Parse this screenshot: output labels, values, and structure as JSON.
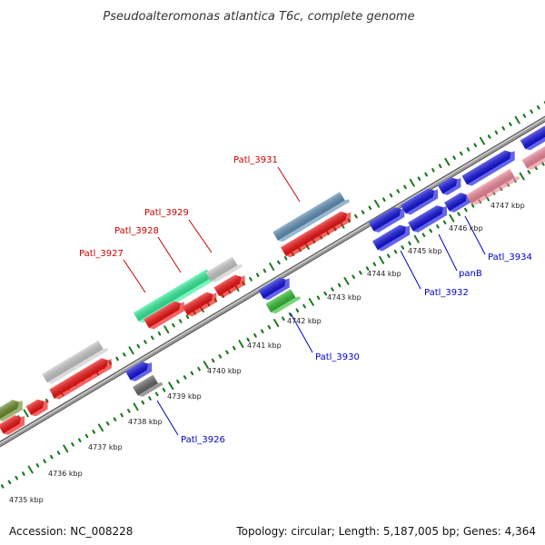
{
  "title": "Pseudoalteromonas atlantica T6c, complete genome",
  "footer": {
    "accession": "Accession: NC_008228",
    "summary": "Topology: circular; Length: 5,187,005 bp; Genes: 4,364"
  },
  "colors": {
    "backbone": "#7f7f7f",
    "ticks": "#1f7a1f",
    "forward_label": "#cc0000",
    "reverse_label": "#0000cc",
    "red": "#ee1111",
    "blue": "#1111dd",
    "steel_blue": "#5f8fb5",
    "green": "#33bb33",
    "aquamarine": "#33ee99",
    "gray": "#c8c8c8",
    "dark_gray": "#666666",
    "pink": "#ee8899",
    "olive": "#6a8c2a"
  },
  "tick_labels": [
    "4735 kbp",
    "4736 kbp",
    "4737 kbp",
    "4738 kbp",
    "4739 kbp",
    "4740 kbp",
    "4741 kbp",
    "4742 kbp",
    "4743 kbp",
    "4744 kbp",
    "4745 kbp",
    "4746 kbp",
    "4747 kbp"
  ],
  "gene_labels_top": [
    "Patl_3927",
    "Patl_3928",
    "Patl_3929",
    "Patl_3931"
  ],
  "gene_labels_bottom": [
    "Patl_3926",
    "Patl_3930",
    "Patl_3932",
    "panB",
    "Patl_3934"
  ]
}
